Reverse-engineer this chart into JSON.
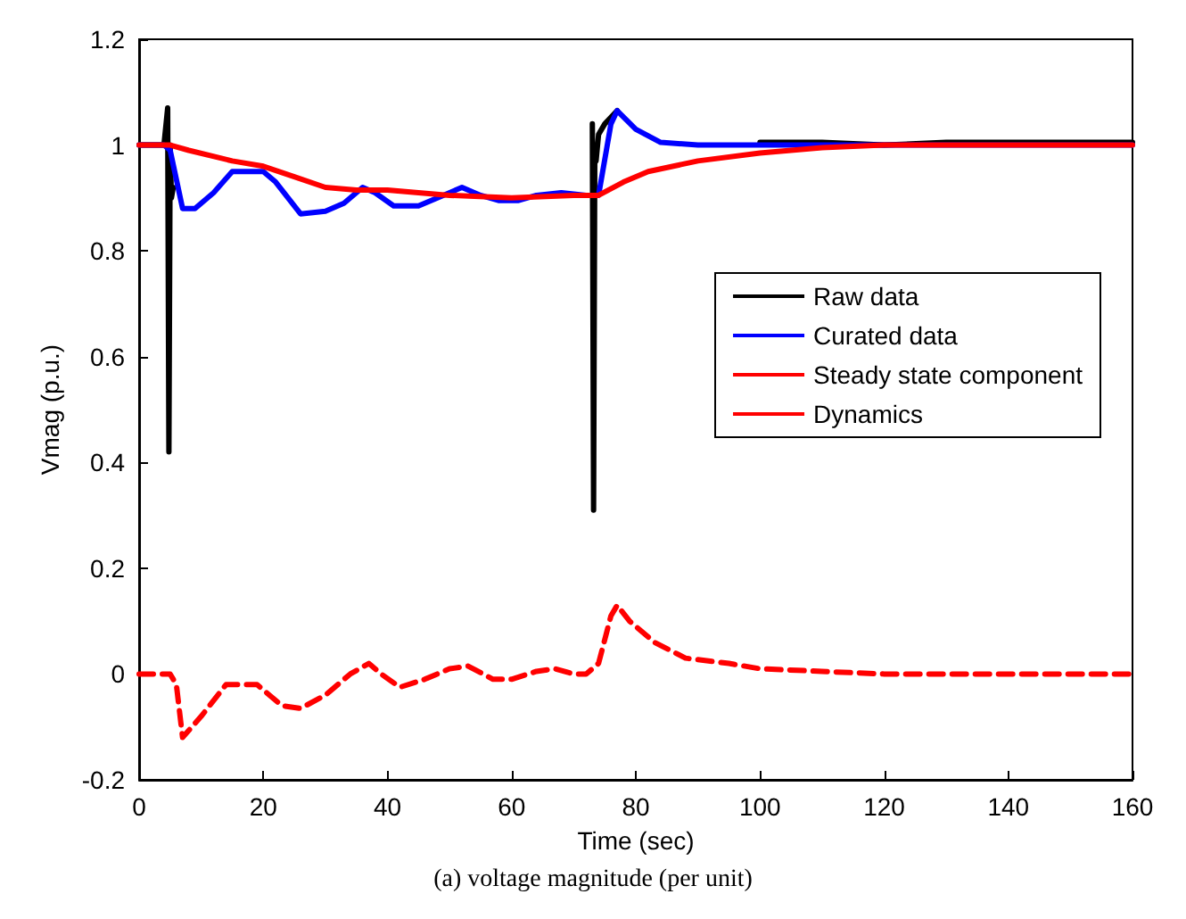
{
  "chart_data": {
    "type": "line",
    "xlabel": "Time (sec)",
    "ylabel": "Vmag (p.u.)",
    "annotations": [
      "(a) voltage magnitude (per unit)"
    ],
    "xlim": [
      0,
      160
    ],
    "xticks": [
      0,
      20,
      40,
      60,
      80,
      100,
      120,
      140,
      160
    ],
    "ylim": [
      -0.2,
      1.2
    ],
    "yticks": [
      -0.2,
      0,
      0.2,
      0.4,
      0.6,
      0.8,
      1,
      1.2
    ],
    "grid": false,
    "legend": "right",
    "marker": "none",
    "series": [
      {
        "name": "Raw data",
        "color": "#000000",
        "x": [
          0,
          4,
          4.6,
          4.8,
          5,
          5.2,
          5.5,
          7,
          9,
          12,
          15,
          20,
          22,
          26,
          30,
          33,
          36,
          38,
          41,
          45,
          49,
          52,
          55,
          58,
          61,
          64,
          68,
          72,
          73,
          73.2,
          73.4,
          73.6,
          74,
          75,
          77,
          80,
          84,
          90,
          100,
          110,
          120,
          130,
          140,
          150,
          160
        ],
        "values": [
          1,
          1,
          1.07,
          0.42,
          1.0,
          0.9,
          0.92,
          null,
          null,
          null,
          null,
          null,
          null,
          null,
          null,
          null,
          null,
          null,
          null,
          null,
          null,
          null,
          null,
          null,
          null,
          null,
          null,
          null,
          1.04,
          0.31,
          1.0,
          0.97,
          1.02,
          1.04,
          1.065,
          null,
          null,
          null,
          1.005,
          1.005,
          1.0,
          1.005,
          1.005,
          1.005,
          1.005
        ]
      },
      {
        "name": "Curated data",
        "color": "#0000ff",
        "x": [
          0,
          4,
          5,
          7,
          9,
          12,
          15,
          20,
          22,
          26,
          30,
          33,
          36,
          38,
          41,
          45,
          49,
          52,
          55,
          58,
          61,
          64,
          68,
          72,
          74,
          76,
          77,
          80,
          84,
          90,
          100,
          120,
          140,
          160
        ],
        "values": [
          1,
          1,
          0.99,
          0.88,
          0.88,
          0.91,
          0.95,
          0.95,
          0.93,
          0.87,
          0.875,
          0.89,
          0.92,
          0.91,
          0.885,
          0.885,
          0.905,
          0.92,
          0.905,
          0.895,
          0.895,
          0.905,
          0.91,
          0.905,
          0.905,
          1.04,
          1.065,
          1.03,
          1.005,
          1.0,
          1.0,
          1.0,
          1.0,
          1.0
        ]
      },
      {
        "name": "Steady state component",
        "color": "#ff0000",
        "x": [
          0,
          5,
          8,
          15,
          20,
          25,
          30,
          35,
          40,
          45,
          50,
          60,
          70,
          74,
          78,
          82,
          90,
          100,
          110,
          120,
          140,
          160
        ],
        "values": [
          1,
          1,
          0.99,
          0.97,
          0.96,
          0.94,
          0.92,
          0.915,
          0.915,
          0.91,
          0.905,
          0.9,
          0.905,
          0.905,
          0.93,
          0.95,
          0.97,
          0.985,
          0.995,
          1.0,
          1.0,
          1.0
        ]
      },
      {
        "name": "Dynamics",
        "color": "#ff0000",
        "line_style": "dashed",
        "x": [
          0,
          5,
          6,
          7,
          10,
          14,
          19,
          23,
          26,
          30,
          34,
          37,
          39,
          42,
          46,
          50,
          53,
          57,
          60,
          64,
          67,
          70,
          72,
          74,
          76,
          77,
          79,
          83,
          88,
          95,
          100,
          110,
          120,
          140,
          160
        ],
        "values": [
          0,
          0,
          -0.02,
          -0.12,
          -0.08,
          -0.02,
          -0.02,
          -0.06,
          -0.065,
          -0.04,
          0.0,
          0.02,
          0.0,
          -0.025,
          -0.01,
          0.01,
          0.015,
          -0.01,
          -0.01,
          0.005,
          0.01,
          0.0,
          0.0,
          0.02,
          0.11,
          0.13,
          0.1,
          0.06,
          0.03,
          0.02,
          0.01,
          0.005,
          0,
          0,
          0
        ]
      }
    ]
  }
}
